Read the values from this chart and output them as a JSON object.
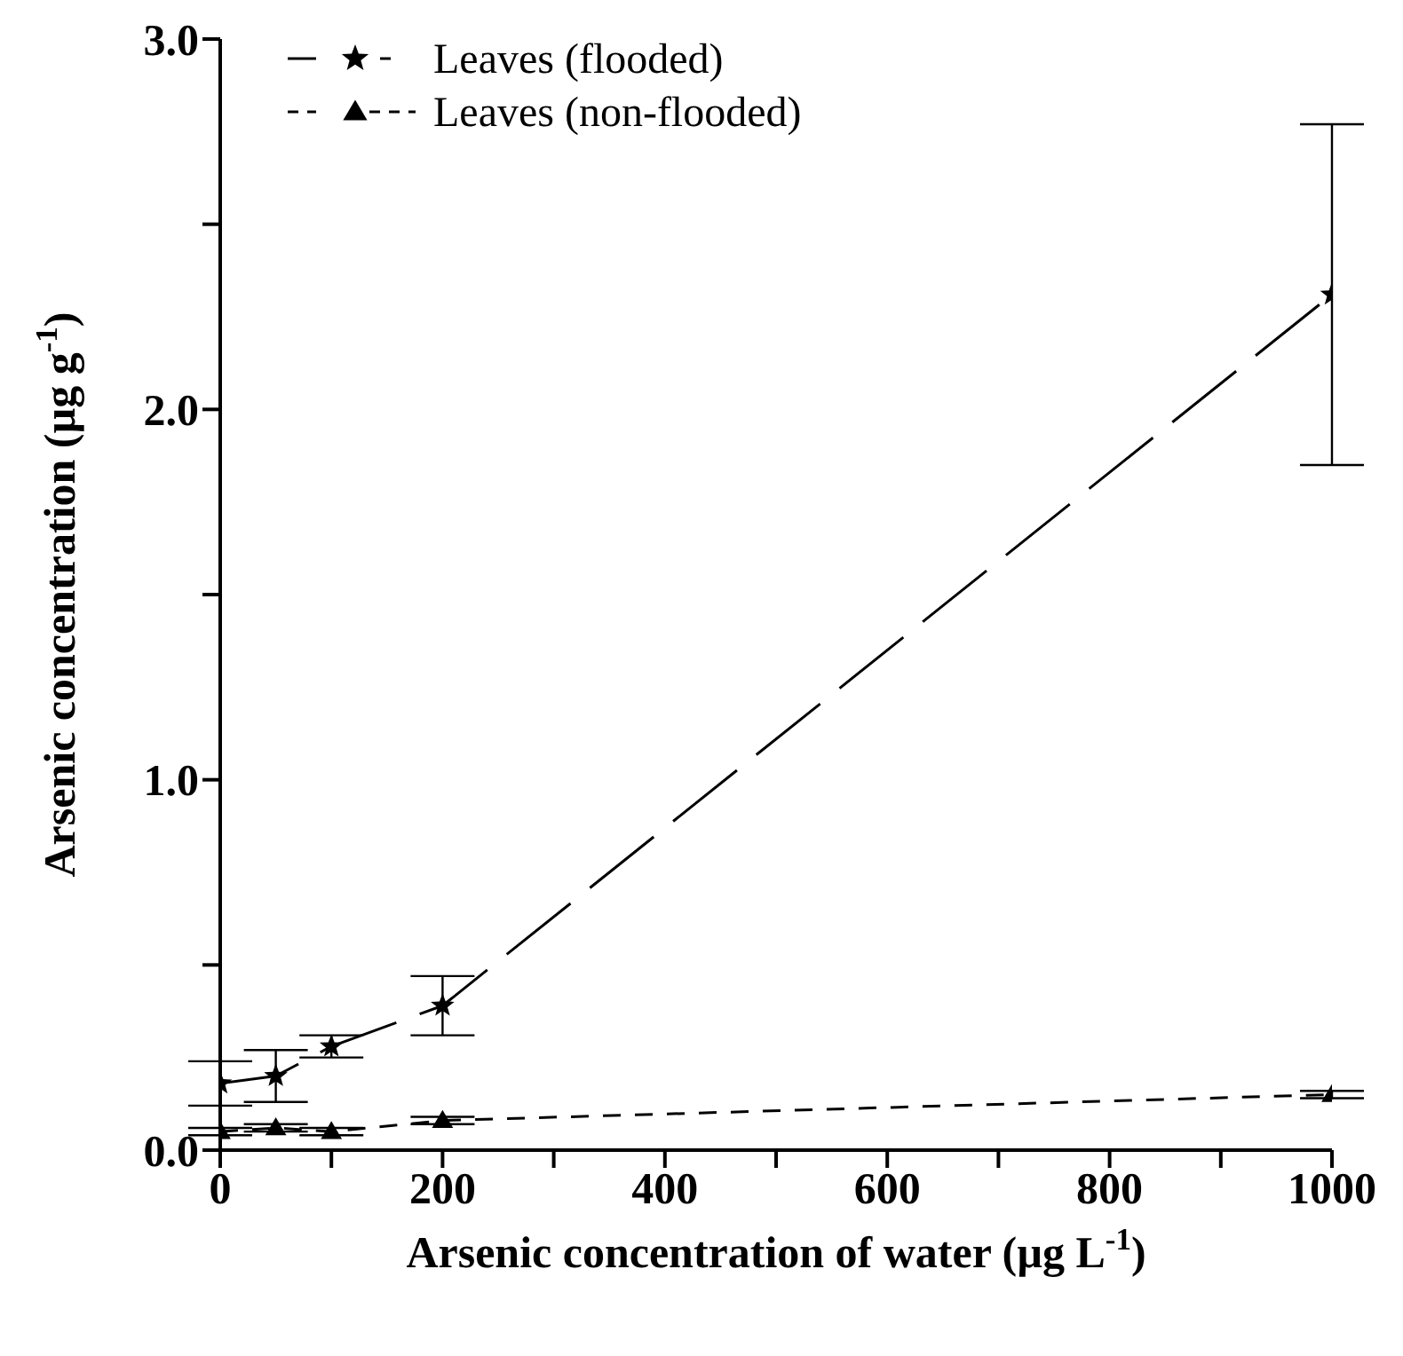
{
  "chart_data": {
    "type": "line",
    "xlabel": "Arsenic concentration of water (µg L$^{-1}$)",
    "ylabel": "Arsenic concentration (µg g$^{-1}$)",
    "x": [
      0,
      50,
      100,
      200,
      1000
    ],
    "series": [
      {
        "name": "Leaves (flooded)",
        "color": "#000000",
        "marker": "star",
        "line_style": "dashed",
        "values": [
          0.18,
          0.2,
          0.28,
          0.39,
          2.31
        ],
        "errors": [
          [
            0.12,
            0.24
          ],
          [
            0.13,
            0.27
          ],
          [
            0.25,
            0.31
          ],
          [
            0.31,
            0.47
          ],
          [
            1.85,
            2.77
          ]
        ]
      },
      {
        "name": "Leaves (non-flooded)",
        "color": "#000000",
        "marker": "triangle",
        "line_style": "dashed",
        "values": [
          0.05,
          0.06,
          0.05,
          0.08,
          0.15
        ],
        "errors": [
          0.01,
          0.01,
          0.01,
          0.01,
          0.01
        ]
      }
    ],
    "xlim": [
      0,
      1000
    ],
    "xticks": [
      0,
      {
        "value": 100,
        "label": null
      },
      200,
      {
        "value": 300,
        "label": null
      },
      400,
      {
        "value": 500,
        "label": null
      },
      600,
      {
        "value": 700,
        "label": null
      },
      800,
      {
        "value": 900,
        "label": null
      },
      1000
    ],
    "ylim": [
      0,
      3
    ],
    "yticks": [
      {
        "value": 0,
        "label": "0.0"
      },
      {
        "value": 0.5,
        "label": null
      },
      {
        "value": 1,
        "label": "1.0"
      },
      {
        "value": 1.5,
        "label": null
      },
      {
        "value": 2,
        "label": "2.0"
      },
      {
        "value": 2.5,
        "label": null
      },
      {
        "value": 3,
        "label": "3.0"
      }
    ],
    "grid": false,
    "legend": "top left"
  }
}
